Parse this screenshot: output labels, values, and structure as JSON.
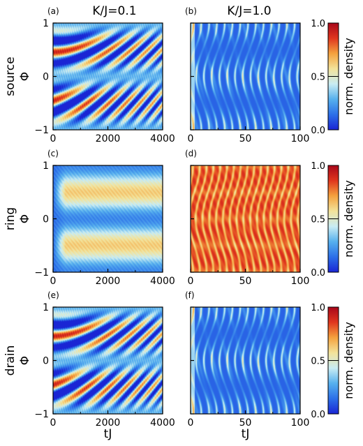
{
  "figure": {
    "column_titles": [
      "K/J=0.1",
      "K/J=1.0"
    ],
    "colorbar": {
      "label": "norm. density",
      "ticks": [
        "0.0",
        "0.5",
        "1.0"
      ],
      "range": [
        0,
        1
      ],
      "colormap": [
        "#1a25d4",
        "#2c6fe8",
        "#56b0ee",
        "#c9ecf3",
        "#f3e39a",
        "#f4a23e",
        "#e0361e",
        "#a8071a"
      ]
    },
    "rows": [
      {
        "name": "source",
        "ylabel": "Φ",
        "panels": [
          "(a)",
          "(b)"
        ]
      },
      {
        "name": "ring",
        "ylabel": "Φ",
        "panels": [
          "(c)",
          "(d)"
        ]
      },
      {
        "name": "drain",
        "ylabel": "Φ",
        "panels": [
          "(e)",
          "(f)"
        ]
      }
    ],
    "xlabel": "tJ"
  },
  "chart_data": [
    {
      "type": "heatmap",
      "panel": "(a)",
      "row": "source",
      "column": "K/J=0.1",
      "xlabel": "",
      "ylabel": "Φ",
      "xlim": [
        0,
        4000
      ],
      "ylim": [
        -1,
        1
      ],
      "xticks": [
        "0",
        "2000",
        "4000"
      ],
      "yticks": [
        "-1",
        "0",
        "1"
      ],
      "pattern": "slow_fringes",
      "base_value": 0.3
    },
    {
      "type": "heatmap",
      "panel": "(b)",
      "row": "source",
      "column": "K/J=1.0",
      "xlabel": "",
      "ylabel": "",
      "xlim": [
        0,
        100
      ],
      "ylim": [
        -1,
        1
      ],
      "xticks": [
        "0",
        "50",
        "100"
      ],
      "yticks": [],
      "pattern": "fast_fringes",
      "base_value": 0.12
    },
    {
      "type": "heatmap",
      "panel": "(c)",
      "row": "ring",
      "column": "K/J=0.1",
      "xlabel": "",
      "ylabel": "Φ",
      "xlim": [
        0,
        4000
      ],
      "ylim": [
        -1,
        1
      ],
      "xticks": [
        "0",
        "2000",
        "4000"
      ],
      "yticks": [
        "-1",
        "0",
        "1"
      ],
      "pattern": "ring_bands",
      "base_value": 0.2
    },
    {
      "type": "heatmap",
      "panel": "(d)",
      "row": "ring",
      "column": "K/J=1.0",
      "xlabel": "",
      "ylabel": "",
      "xlim": [
        0,
        100
      ],
      "ylim": [
        -1,
        1
      ],
      "xticks": [
        "0",
        "50",
        "100"
      ],
      "yticks": [],
      "pattern": "ring_fast",
      "base_value": 0.85
    },
    {
      "type": "heatmap",
      "panel": "(e)",
      "row": "drain",
      "column": "K/J=0.1",
      "xlabel": "tJ",
      "ylabel": "Φ",
      "xlim": [
        0,
        4000
      ],
      "ylim": [
        -1,
        1
      ],
      "xticks": [
        "0",
        "2000",
        "4000"
      ],
      "yticks": [
        "-1",
        "0",
        "1"
      ],
      "pattern": "slow_fringes",
      "base_value": 0.3
    },
    {
      "type": "heatmap",
      "panel": "(f)",
      "row": "drain",
      "column": "K/J=1.0",
      "xlabel": "tJ",
      "ylabel": "",
      "xlim": [
        0,
        100
      ],
      "ylim": [
        -1,
        1
      ],
      "xticks": [
        "0",
        "50",
        "100"
      ],
      "yticks": [],
      "pattern": "fast_fringes",
      "base_value": 0.12
    }
  ]
}
